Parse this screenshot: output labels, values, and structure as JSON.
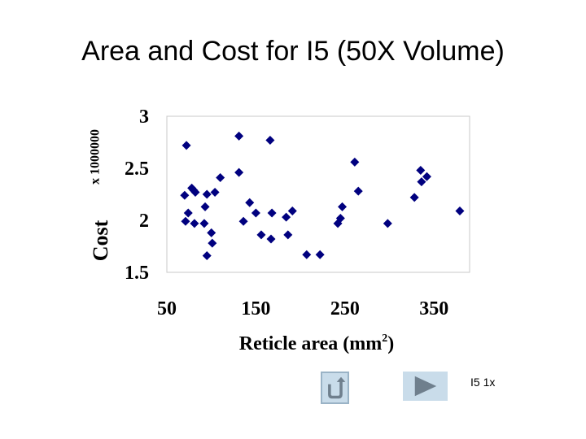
{
  "slide": {
    "title": "Area and Cost for I5 (50X Volume)",
    "caption": "I5 1x"
  },
  "colors": {
    "marker": "#00007f",
    "button_fill": "#c9dcea",
    "icon": "#6f7f8d"
  },
  "icons": {
    "back": "return-arrow-icon",
    "next": "play-triangle-icon"
  },
  "chart_data": {
    "type": "scatter",
    "title": "",
    "xlabel": "Reticle area (mm",
    "xlabel_sup": "2",
    "xlabel_end": ")",
    "ylabel": "Cost",
    "ylabel_multiplier": "x 1000000",
    "xlim": [
      50,
      390
    ],
    "ylim": [
      1.5,
      3
    ],
    "xticks": [
      50,
      150,
      250,
      350
    ],
    "yticks": [
      1.5,
      2,
      2.5,
      3
    ],
    "grid": false,
    "marker": "diamond",
    "points": [
      [
        70,
        2.24
      ],
      [
        71,
        1.99
      ],
      [
        72,
        2.72
      ],
      [
        74,
        2.07
      ],
      [
        78,
        2.31
      ],
      [
        80,
        2.29
      ],
      [
        82,
        2.27
      ],
      [
        81,
        1.97
      ],
      [
        92,
        1.97
      ],
      [
        93,
        2.13
      ],
      [
        95,
        2.25
      ],
      [
        95,
        1.66
      ],
      [
        100,
        1.88
      ],
      [
        101,
        1.78
      ],
      [
        104,
        2.27
      ],
      [
        110,
        2.41
      ],
      [
        131,
        2.81
      ],
      [
        131,
        2.46
      ],
      [
        136,
        1.99
      ],
      [
        143,
        2.17
      ],
      [
        150,
        2.07
      ],
      [
        156,
        1.86
      ],
      [
        166,
        2.77
      ],
      [
        167,
        1.82
      ],
      [
        168,
        2.07
      ],
      [
        184,
        2.03
      ],
      [
        186,
        1.86
      ],
      [
        191,
        2.09
      ],
      [
        207,
        1.67
      ],
      [
        222,
        1.67
      ],
      [
        242,
        1.97
      ],
      [
        245,
        2.02
      ],
      [
        247,
        2.13
      ],
      [
        261,
        2.56
      ],
      [
        265,
        2.28
      ],
      [
        298,
        1.97
      ],
      [
        328,
        2.22
      ],
      [
        335,
        2.48
      ],
      [
        336,
        2.37
      ],
      [
        342,
        2.42
      ],
      [
        379,
        2.09
      ]
    ]
  }
}
